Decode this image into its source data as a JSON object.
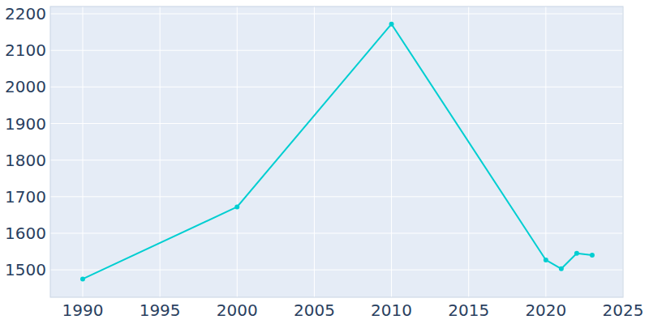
{
  "chart_data": {
    "type": "line",
    "x": [
      1990,
      2000,
      2010,
      2020,
      2021,
      2022,
      2023
    ],
    "values": [
      1475,
      1672,
      2172,
      1527,
      1503,
      1545,
      1540
    ],
    "color": "#00ced1",
    "marker": "circle",
    "xlim": [
      1987.9,
      2025
    ],
    "xticks": [
      1990,
      1995,
      2000,
      2005,
      2010,
      2015,
      2020,
      2025
    ],
    "ylim": [
      1425,
      2220
    ],
    "yticks": [
      1500,
      1600,
      1700,
      1800,
      1900,
      2000,
      2100,
      2200
    ],
    "grid": true
  }
}
